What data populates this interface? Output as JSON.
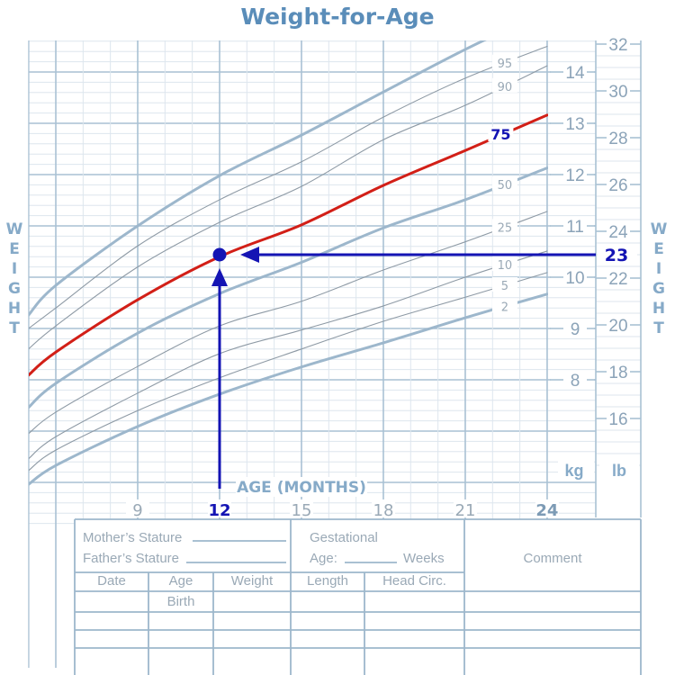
{
  "title": "Weight-for-Age",
  "side_label": "WEIGHT",
  "colors": {
    "title": "#5a8db9",
    "grid_major": "#a9c1d4",
    "grid_minor": "#dde6ee",
    "curve_major": "#9db7cc",
    "curve_minor": "#8e9aa5",
    "highlight": "#d21f17",
    "marker": "#1414b4"
  },
  "chart_data": {
    "type": "line",
    "title": "Weight-for-Age",
    "xlabel": "AGE (MONTHS)",
    "x_ticks": [
      "9",
      "12",
      "15",
      "18",
      "21",
      "24"
    ],
    "x_tick_values": [
      9,
      12,
      15,
      18,
      21,
      24
    ],
    "xlim": [
      5,
      24
    ],
    "ylabel": "WEIGHT",
    "y_units": {
      "left": "kg",
      "right": "lb"
    },
    "ylim_kg": [
      5.3,
      14.6
    ],
    "kg_ticks": [
      "8",
      "9",
      "10",
      "11",
      "12",
      "13",
      "14"
    ],
    "lb_ticks": [
      "16",
      "18",
      "20",
      "22",
      "24",
      "26",
      "28",
      "30",
      "32"
    ],
    "grid": true,
    "x": [
      5,
      6,
      9,
      12,
      15,
      18,
      21,
      24
    ],
    "series": [
      {
        "name": "",
        "percentile": 98,
        "style": "major",
        "values": [
          9.26,
          9.84,
          11.0,
          11.98,
          12.77,
          13.61,
          14.44,
          15.2
        ]
      },
      {
        "name": "95",
        "percentile": 95,
        "style": "minor",
        "values": [
          9.0,
          9.4,
          10.61,
          11.51,
          12.25,
          13.12,
          13.88,
          14.5
        ]
      },
      {
        "name": "90",
        "percentile": 90,
        "style": "minor",
        "values": [
          8.6,
          9.05,
          10.2,
          11.07,
          11.77,
          12.68,
          13.35,
          14.12
        ]
      },
      {
        "name": "75",
        "percentile": 75,
        "style": "highlight",
        "values": [
          8.09,
          8.54,
          9.56,
          10.4,
          11.02,
          11.79,
          12.47,
          13.16
        ]
      },
      {
        "name": "50",
        "percentile": 50,
        "style": "major",
        "values": [
          7.46,
          7.93,
          8.91,
          9.68,
          10.29,
          10.96,
          11.51,
          12.13
        ]
      },
      {
        "name": "25",
        "percentile": 25,
        "style": "minor",
        "values": [
          6.95,
          7.37,
          8.26,
          9.05,
          9.53,
          10.14,
          10.69,
          11.28
        ]
      },
      {
        "name": "10",
        "percentile": 10,
        "style": "minor",
        "values": [
          6.46,
          6.89,
          7.74,
          8.51,
          8.97,
          9.44,
          10.0,
          10.51
        ]
      },
      {
        "name": "5",
        "percentile": 5,
        "style": "minor",
        "values": [
          6.23,
          6.63,
          7.4,
          8.04,
          8.6,
          9.14,
          9.61,
          10.09
        ]
      },
      {
        "name": "2",
        "percentile": 2,
        "style": "major",
        "values": [
          5.96,
          6.33,
          7.09,
          7.72,
          8.25,
          8.72,
          9.21,
          9.67
        ]
      }
    ],
    "annotation": {
      "age_months": 12,
      "age_label": "12",
      "weight_lb": 23,
      "weight_label": "23",
      "weight_kg": 10.43
    }
  },
  "form": {
    "mother_stature": "Mother’s Stature",
    "father_stature": "Father’s Stature",
    "gestational": "Gestational",
    "age_prefix": "Age:",
    "weeks": "Weeks",
    "comment": "Comment",
    "columns": [
      "Date",
      "Age",
      "Weight",
      "Length",
      "Head  Circ."
    ],
    "birth": "Birth"
  }
}
